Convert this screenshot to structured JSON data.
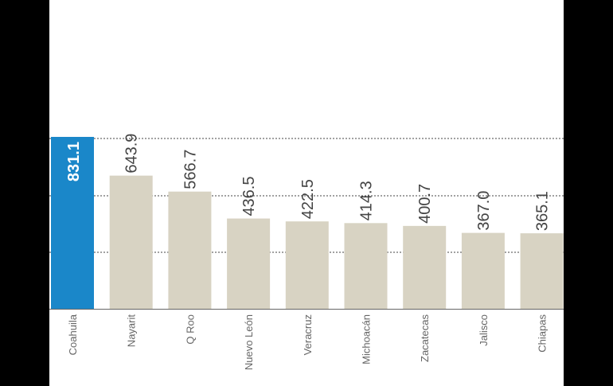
{
  "chart_data": {
    "type": "bar",
    "title": "",
    "xlabel": "",
    "ylabel": "",
    "categories": [
      "Coahuila",
      "Nayarit",
      "Q Roo",
      "Nuevo León",
      "Veracruz",
      "Michoacán",
      "Zacatecas",
      "Jalisco",
      "Chiapas"
    ],
    "values": [
      831.1,
      643.9,
      566.7,
      436.5,
      422.5,
      414.3,
      400.7,
      367.0,
      365.1
    ],
    "value_labels": [
      "831.1",
      "643.9",
      "566.7",
      "436.5",
      "422.5",
      "414.3",
      "400.7",
      "367.0",
      "365.1"
    ],
    "ylim": [
      0,
      831.1
    ],
    "grid": true,
    "colors": {
      "highlight": "#1a87c9",
      "bar": "#d8d3c3",
      "highlight_text": "#ffffff",
      "label_text": "#444444",
      "category_text": "#666666",
      "grid": "#444444",
      "baseline": "#666666"
    }
  }
}
